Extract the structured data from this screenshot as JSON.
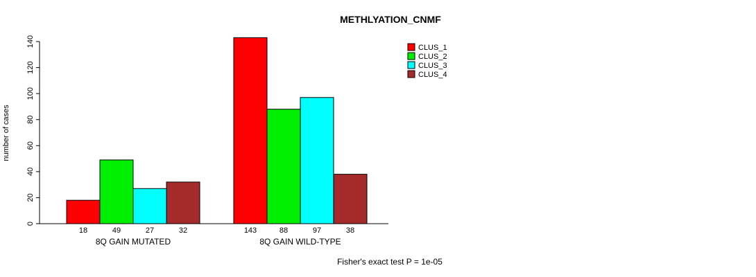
{
  "title": "METHLYATION_CNMF",
  "caption": "Fisher's exact test P = 1e-05",
  "chart_data": {
    "type": "bar",
    "title": "METHLYATION_CNMF",
    "xlabel": "",
    "ylabel": "number of cases",
    "ylim": [
      0,
      140
    ],
    "yticks": [
      0,
      20,
      40,
      60,
      80,
      100,
      120,
      140
    ],
    "grid": false,
    "legend_position": "top-right",
    "groups": [
      "8Q GAIN MUTATED",
      "8Q GAIN WILD-TYPE"
    ],
    "series": [
      {
        "name": "CLUS_1",
        "color": "#FF0000",
        "values": [
          18,
          143
        ]
      },
      {
        "name": "CLUS_2",
        "color": "#00EE00",
        "values": [
          49,
          88
        ]
      },
      {
        "name": "CLUS_3",
        "color": "#00FFFF",
        "values": [
          27,
          97
        ]
      },
      {
        "name": "CLUS_4",
        "color": "#A52A2A",
        "values": [
          32,
          38
        ]
      }
    ],
    "bar_value_labels": {
      "8Q GAIN MUTATED": [
        18,
        49,
        27,
        32
      ],
      "8Q GAIN WILD-TYPE": [
        143,
        88,
        97,
        38
      ]
    },
    "annotation": "Fisher's exact test P = 1e-05"
  }
}
